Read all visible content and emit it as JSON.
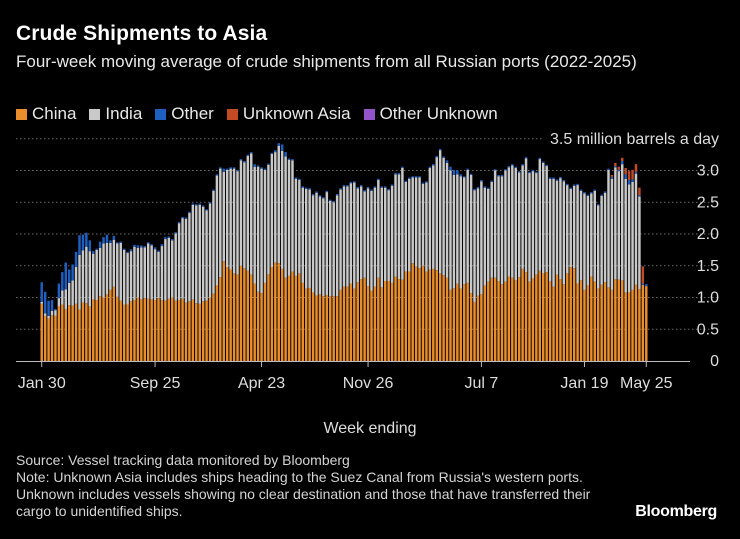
{
  "title": "Crude Shipments to Asia",
  "subtitle": "Four-week moving average of crude shipments from all Russian ports (2022-2025)",
  "source": "Source: Vessel tracking data monitored by Bloomberg",
  "note": "Note: Unknown Asia includes ships heading to the Suez Canal from Russia's western ports. Unknown includes vessels showing no clear destination and those that have transferred their cargo to unidentified ships.",
  "brand": "Bloomberg",
  "legend": [
    {
      "name": "China",
      "color": "#e98e2c"
    },
    {
      "name": "India",
      "color": "#c9c9c9"
    },
    {
      "name": "Other",
      "color": "#1f5fc0"
    },
    {
      "name": "Unknown Asia",
      "color": "#c24a25"
    },
    {
      "name": "Other Unknown",
      "color": "#9454c9"
    }
  ],
  "chart_data": {
    "type": "bar",
    "stacked": true,
    "xlabel": "Week ending",
    "ylabel": "",
    "ylim": [
      0,
      3.5
    ],
    "y_ticks": [
      0,
      0.5,
      1.0,
      1.5,
      2.0,
      2.5,
      3.0,
      3.5
    ],
    "y_tick_labels": [
      "0",
      "0.5",
      "1.0",
      "1.5",
      "2.0",
      "2.5",
      "3.0",
      "3.5 million barrels a day"
    ],
    "grid": true,
    "x_tick_labels": [
      "Jan 30",
      "Sep 25",
      "Apr 23",
      "Nov 26",
      "Jul 7",
      "Jan 19",
      "May 25"
    ],
    "x_tick_index": [
      0,
      33,
      64,
      95,
      128,
      158,
      176
    ],
    "series": [
      {
        "name": "China",
        "values": [
          0.9,
          0.71,
          0.67,
          0.72,
          0.71,
          0.86,
          0.89,
          0.82,
          0.88,
          0.87,
          0.9,
          0.81,
          0.92,
          0.91,
          0.86,
          0.97,
          0.96,
          1.02,
          1.0,
          1.05,
          1.12,
          1.17,
          1.01,
          0.95,
          0.89,
          0.89,
          0.94,
          0.96,
          1.0,
          0.97,
          0.99,
          0.98,
          0.97,
          0.96,
          0.99,
          0.96,
          0.95,
          0.98,
          1.0,
          0.95,
          0.96,
          0.98,
          0.92,
          0.94,
          0.97,
          0.91,
          0.9,
          0.94,
          0.95,
          1.0,
          1.06,
          1.19,
          1.32,
          1.57,
          1.48,
          1.44,
          1.38,
          1.36,
          1.5,
          1.46,
          1.42,
          1.36,
          1.22,
          1.09,
          1.07,
          1.23,
          1.37,
          1.48,
          1.55,
          1.54,
          1.45,
          1.31,
          1.34,
          1.41,
          1.34,
          1.38,
          1.23,
          1.14,
          1.15,
          1.08,
          1.03,
          1.05,
          1.02,
          1.04,
          1.02,
          1.02,
          1.02,
          1.12,
          1.17,
          1.17,
          1.22,
          1.14,
          1.24,
          1.29,
          1.31,
          1.18,
          1.11,
          1.17,
          1.31,
          1.16,
          1.26,
          1.26,
          1.23,
          1.33,
          1.29,
          1.28,
          1.41,
          1.41,
          1.54,
          1.49,
          1.46,
          1.5,
          1.41,
          1.44,
          1.45,
          1.43,
          1.38,
          1.35,
          1.31,
          1.12,
          1.15,
          1.22,
          1.14,
          1.21,
          1.23,
          1.07,
          0.93,
          1.03,
          1.05,
          1.19,
          1.25,
          1.31,
          1.31,
          1.26,
          1.21,
          1.25,
          1.33,
          1.31,
          1.27,
          1.32,
          1.45,
          1.4,
          1.25,
          1.3,
          1.36,
          1.42,
          1.38,
          1.4,
          1.26,
          1.17,
          1.36,
          1.29,
          1.21,
          1.38,
          1.48,
          1.46,
          1.22,
          1.27,
          1.12,
          1.19,
          1.33,
          1.25,
          1.14,
          1.2,
          1.24,
          1.16,
          1.12,
          1.29,
          1.28,
          1.27,
          1.08,
          1.08,
          1.12,
          1.2,
          1.13,
          1.2,
          1.18
        ]
      },
      {
        "name": "India",
        "values": [
          0.03,
          0.04,
          0.04,
          0.07,
          0.09,
          0.13,
          0.22,
          0.31,
          0.35,
          0.4,
          0.58,
          0.86,
          0.82,
          0.89,
          0.87,
          0.72,
          0.79,
          0.76,
          0.85,
          0.81,
          0.74,
          0.74,
          0.84,
          0.91,
          0.86,
          0.81,
          0.79,
          0.84,
          0.78,
          0.82,
          0.8,
          0.87,
          0.85,
          0.8,
          0.73,
          0.85,
          0.97,
          0.96,
          0.9,
          1.06,
          1.21,
          1.27,
          1.32,
          1.39,
          1.49,
          1.54,
          1.56,
          1.49,
          1.42,
          1.48,
          1.62,
          1.73,
          1.71,
          1.41,
          1.53,
          1.59,
          1.65,
          1.63,
          1.66,
          1.67,
          1.81,
          1.91,
          1.84,
          1.97,
          1.96,
          1.78,
          1.72,
          1.78,
          1.74,
          1.85,
          1.86,
          1.91,
          1.83,
          1.75,
          1.53,
          1.47,
          1.5,
          1.57,
          1.55,
          1.53,
          1.62,
          1.54,
          1.54,
          1.62,
          1.5,
          1.48,
          1.59,
          1.58,
          1.58,
          1.58,
          1.58,
          1.67,
          1.48,
          1.46,
          1.36,
          1.54,
          1.57,
          1.56,
          1.54,
          1.57,
          1.47,
          1.43,
          1.53,
          1.61,
          1.65,
          1.76,
          1.41,
          1.46,
          1.35,
          1.4,
          1.43,
          1.29,
          1.4,
          1.6,
          1.63,
          1.78,
          1.94,
          1.85,
          1.81,
          1.88,
          1.78,
          1.72,
          1.77,
          1.68,
          1.78,
          1.86,
          1.76,
          1.69,
          1.78,
          1.54,
          1.46,
          1.51,
          1.69,
          1.65,
          1.7,
          1.75,
          1.72,
          1.77,
          1.77,
          1.65,
          1.63,
          1.79,
          1.71,
          1.69,
          1.6,
          1.76,
          1.74,
          1.67,
          1.61,
          1.7,
          1.48,
          1.59,
          1.62,
          1.39,
          1.23,
          1.3,
          1.55,
          1.41,
          1.52,
          1.41,
          1.31,
          1.43,
          1.31,
          1.4,
          1.41,
          1.85,
          1.75,
          1.76,
          1.71,
          1.83,
          1.79,
          1.7,
          1.7,
          1.75,
          1.46
        ]
      },
      {
        "name": "Other",
        "values": [
          0.31,
          0.34,
          0.24,
          0.17,
          0.02,
          0.23,
          0.29,
          0.42,
          0.21,
          0.25,
          0.24,
          0.31,
          0.25,
          0.22,
          0.17,
          0.04,
          0.02,
          0.1,
          0.1,
          0.13,
          0.04,
          0.06,
          0.02,
          0.02,
          0.02,
          0.02,
          0.03,
          0.03,
          0.04,
          0.03,
          0.02,
          0.02,
          0.02,
          0.03,
          0.02,
          0.03,
          0.03,
          0.02,
          0.02,
          0.02,
          0.02,
          0.02,
          0.02,
          0.02,
          0.02,
          0.02,
          0.02,
          0.02,
          0.02,
          0.02,
          0.02,
          0.02,
          0.02,
          0.05,
          0.02,
          0.02,
          0.02,
          0.02,
          0.02,
          0.02,
          0.02,
          0.02,
          0.04,
          0.02,
          0.02,
          0.02,
          0.02,
          0.02,
          0.03,
          0.04,
          0.1,
          0.07,
          0.02,
          0.02,
          0.02,
          0.02,
          0.02,
          0.02,
          0.02,
          0.02,
          0.02,
          0.02,
          0.02,
          0.02,
          0.02,
          0.02,
          0.02,
          0.02,
          0.02,
          0.02,
          0.02,
          0.02,
          0.02,
          0.02,
          0.02,
          0.02,
          0.02,
          0.02,
          0.02,
          0.02,
          0.02,
          0.02,
          0.02,
          0.02,
          0.02,
          0.02,
          0.02,
          0.02,
          0.02,
          0.02,
          0.02,
          0.02,
          0.02,
          0.02,
          0.02,
          0.02,
          0.02,
          0.02,
          0.04,
          0.06,
          0.08,
          0.06,
          0.03,
          0.02,
          0.02,
          0.02,
          0.02,
          0.02,
          0.02,
          0.02,
          0.02,
          0.02,
          0.02,
          0.02,
          0.02,
          0.02,
          0.02,
          0.02,
          0.02,
          0.02,
          0.02,
          0.02,
          0.02,
          0.02,
          0.02,
          0.02,
          0.02,
          0.02,
          0.02,
          0.02,
          0.02,
          0.02,
          0.02,
          0.02,
          0.02,
          0.02,
          0.02,
          0.02,
          0.02,
          0.02,
          0.02,
          0.02,
          0.02,
          0.02,
          0.02,
          0.02,
          0.03,
          0.02,
          0.02,
          0.05,
          0.07,
          0.07,
          0.04,
          0.03,
          0.02,
          0.02,
          0.03,
          0.02,
          0.02
        ]
      },
      {
        "name": "Unknown Asia",
        "values": [
          0,
          0,
          0,
          0,
          0,
          0,
          0,
          0,
          0,
          0,
          0,
          0,
          0,
          0,
          0,
          0,
          0,
          0,
          0,
          0,
          0,
          0,
          0,
          0,
          0,
          0,
          0,
          0,
          0,
          0,
          0,
          0,
          0,
          0,
          0,
          0,
          0,
          0,
          0,
          0,
          0,
          0,
          0,
          0,
          0,
          0,
          0,
          0,
          0,
          0,
          0,
          0,
          0,
          0,
          0,
          0,
          0,
          0,
          0,
          0,
          0,
          0,
          0,
          0,
          0,
          0,
          0,
          0,
          0,
          0,
          0,
          0,
          0,
          0,
          0,
          0,
          0,
          0,
          0,
          0,
          0,
          0,
          0,
          0,
          0,
          0,
          0,
          0,
          0,
          0,
          0,
          0,
          0,
          0,
          0,
          0,
          0,
          0,
          0,
          0,
          0,
          0,
          0,
          0,
          0,
          0,
          0,
          0,
          0,
          0,
          0,
          0,
          0,
          0,
          0,
          0,
          0,
          0,
          0,
          0,
          0,
          0,
          0,
          0,
          0,
          0,
          0,
          0,
          0,
          0,
          0,
          0,
          0,
          0,
          0,
          0,
          0,
          0,
          0,
          0,
          0,
          0,
          0,
          0,
          0,
          0,
          0,
          0,
          0,
          0,
          0,
          0,
          0,
          0,
          0,
          0,
          0,
          0,
          0,
          0,
          0,
          0,
          0,
          0,
          0,
          0,
          0.03,
          0.05,
          0.05,
          0.05,
          0.1,
          0.14,
          0.15,
          0.12,
          0.12,
          0.27
        ]
      },
      {
        "name": "Other Unknown",
        "values": [
          0,
          0,
          0,
          0,
          0,
          0,
          0,
          0,
          0,
          0,
          0,
          0,
          0,
          0,
          0,
          0,
          0,
          0,
          0,
          0,
          0,
          0,
          0,
          0,
          0,
          0,
          0,
          0,
          0,
          0,
          0,
          0,
          0,
          0,
          0,
          0,
          0,
          0,
          0,
          0,
          0,
          0,
          0,
          0,
          0,
          0,
          0,
          0,
          0,
          0,
          0,
          0,
          0,
          0,
          0,
          0,
          0,
          0,
          0,
          0,
          0,
          0,
          0,
          0,
          0,
          0,
          0,
          0,
          0,
          0,
          0,
          0,
          0,
          0,
          0,
          0,
          0,
          0,
          0,
          0,
          0,
          0,
          0,
          0,
          0,
          0,
          0,
          0,
          0,
          0,
          0,
          0,
          0,
          0,
          0,
          0,
          0,
          0,
          0,
          0,
          0,
          0,
          0,
          0,
          0,
          0,
          0,
          0,
          0,
          0,
          0,
          0,
          0,
          0,
          0,
          0,
          0,
          0,
          0,
          0,
          0,
          0,
          0,
          0,
          0,
          0,
          0,
          0,
          0,
          0,
          0,
          0,
          0,
          0,
          0,
          0,
          0,
          0,
          0,
          0,
          0,
          0,
          0,
          0,
          0,
          0,
          0,
          0,
          0,
          0,
          0,
          0,
          0,
          0,
          0,
          0,
          0,
          0,
          0,
          0,
          0,
          0,
          0,
          0,
          0,
          0,
          0,
          0,
          0,
          0,
          0,
          0,
          0,
          0,
          0,
          0
        ]
      }
    ]
  }
}
